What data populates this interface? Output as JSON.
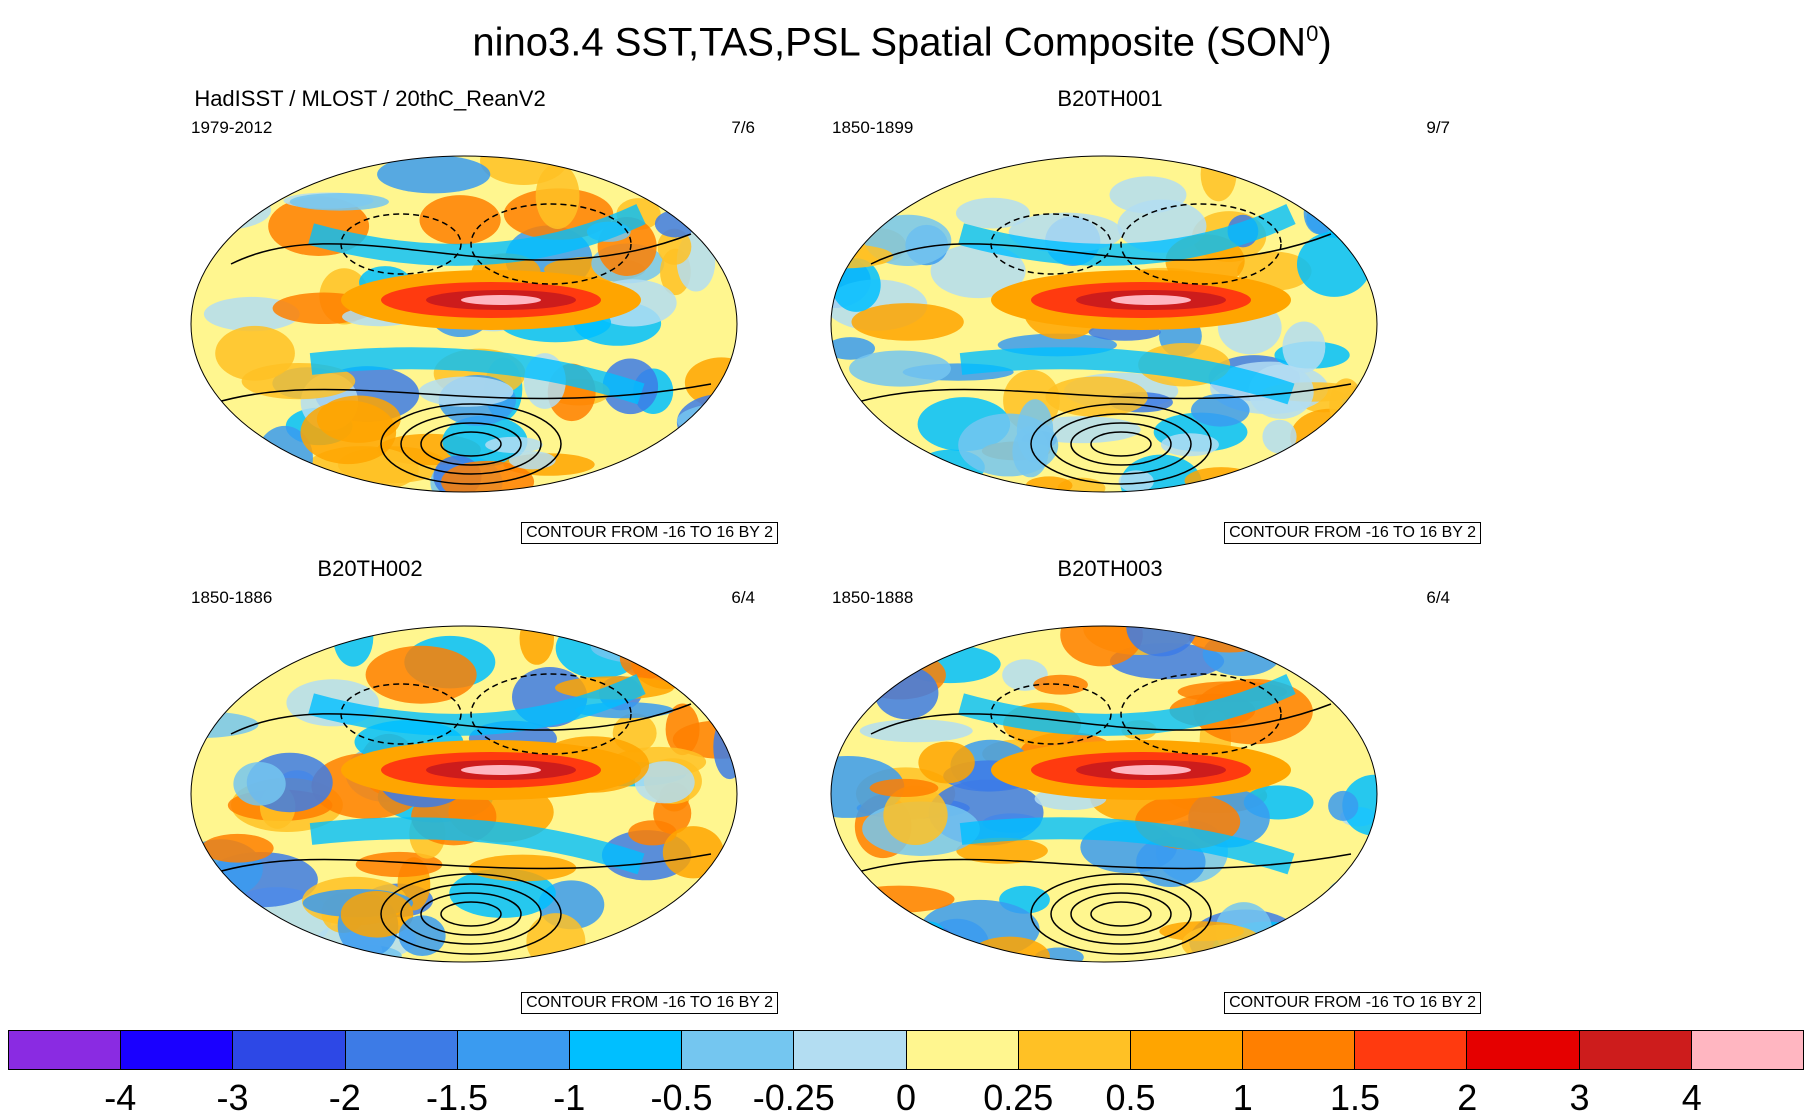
{
  "title": {
    "text": "nino3.4 SST,TAS,PSL Spatial Composite (SON",
    "sup": "0",
    "close": ")"
  },
  "panels": [
    {
      "title": "HadISST / MLOST / 20thC_ReanV2",
      "period": "1979-2012",
      "count": "7/6",
      "contour_note": "CONTOUR FROM -16 TO 16 BY 2"
    },
    {
      "title": "B20TH001",
      "period": "1850-1899",
      "count": "9/7",
      "contour_note": "CONTOUR FROM -16 TO 16 BY 2"
    },
    {
      "title": "B20TH002",
      "period": "1850-1886",
      "count": "6/4",
      "contour_note": "CONTOUR FROM -16 TO 16 BY 2"
    },
    {
      "title": "B20TH003",
      "period": "1850-1888",
      "count": "6/4",
      "contour_note": "CONTOUR FROM -16 TO 16 BY 2"
    }
  ],
  "colorbar": {
    "colors": [
      "#8a2be2",
      "#1a00ff",
      "#2d48e6",
      "#3d7be6",
      "#3a9bf0",
      "#00bfff",
      "#74c6f0",
      "#b3ddf2",
      "#fff68f",
      "#ffc125",
      "#ffa500",
      "#ff7f00",
      "#ff3a0f",
      "#e50000",
      "#cd1c1c",
      "#ffb6c1"
    ],
    "labels": [
      "-4",
      "-3",
      "-2",
      "-1.5",
      "-1",
      "-0.5",
      "-0.25",
      "0",
      "0.25",
      "0.5",
      "1",
      "1.5",
      "2",
      "3",
      "4"
    ]
  }
}
